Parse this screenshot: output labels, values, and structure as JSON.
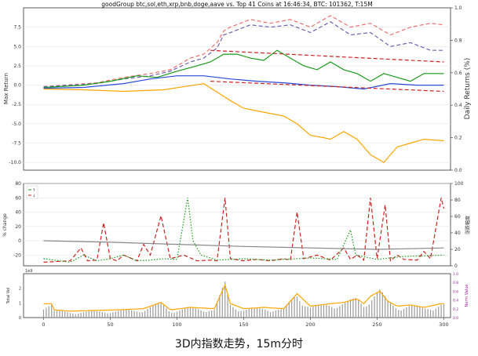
{
  "caption": "3D内指数走势，15m分时",
  "chart_data": [
    {
      "type": "line",
      "title": "goodGroup btc,sol,eth,xrp,bnb,doge,aave vs. Top 41 Coins at 16:46:34, BTC: 101362, T:15M",
      "ylabel_left": "Max Return",
      "ylabel_right": "Daily Returns (%)",
      "xlim": [
        -15,
        305
      ],
      "ylim": [
        -11,
        10
      ],
      "yticks": [
        -10.0,
        -7.5,
        -5.0,
        -2.5,
        0.0,
        2.5,
        5.0,
        7.5
      ],
      "ytick_labels": [
        "-10.0",
        "-7.5",
        "-5.0",
        "-2.5",
        "0.0",
        "2.5",
        "5.0",
        "7.5"
      ],
      "right_ticks": [
        "0.0",
        "0.2",
        "0.4",
        "0.6",
        "0.8",
        "1.0"
      ],
      "grid": true,
      "series": [
        {
          "color": "#f07070",
          "style": "dashed",
          "points": [
            [
              0,
              -0.2
            ],
            [
              40,
              0.3
            ],
            [
              60,
              1.0
            ],
            [
              80,
              1.5
            ],
            [
              95,
              2.0
            ],
            [
              110,
              3.5
            ],
            [
              120,
              4.0
            ],
            [
              130,
              5.5
            ],
            [
              135,
              7.0
            ],
            [
              140,
              7.5
            ],
            [
              155,
              8.5
            ],
            [
              170,
              8.0
            ],
            [
              185,
              8.5
            ],
            [
              200,
              7.5
            ],
            [
              215,
              9.0
            ],
            [
              230,
              7.5
            ],
            [
              245,
              8.0
            ],
            [
              260,
              6.5
            ],
            [
              275,
              7.5
            ],
            [
              290,
              8.0
            ],
            [
              300,
              7.8
            ]
          ]
        },
        {
          "color": "#7060b0",
          "style": "dashed",
          "points": [
            [
              0,
              -0.2
            ],
            [
              40,
              0.2
            ],
            [
              60,
              0.8
            ],
            [
              80,
              1.2
            ],
            [
              95,
              1.8
            ],
            [
              110,
              3.0
            ],
            [
              120,
              3.5
            ],
            [
              130,
              4.8
            ],
            [
              135,
              6.5
            ],
            [
              140,
              6.8
            ],
            [
              155,
              7.8
            ],
            [
              170,
              7.5
            ],
            [
              185,
              7.8
            ],
            [
              200,
              6.8
            ],
            [
              215,
              8.2
            ],
            [
              230,
              6.5
            ],
            [
              245,
              6.8
            ],
            [
              260,
              5.0
            ],
            [
              275,
              5.5
            ],
            [
              290,
              4.5
            ],
            [
              300,
              4.5
            ]
          ]
        },
        {
          "color": "#1a9a1a",
          "style": "solid",
          "points": [
            [
              0,
              -0.3
            ],
            [
              30,
              0.0
            ],
            [
              50,
              0.5
            ],
            [
              70,
              1.2
            ],
            [
              85,
              1.0
            ],
            [
              100,
              1.8
            ],
            [
              115,
              2.5
            ],
            [
              125,
              3.0
            ],
            [
              135,
              4.0
            ],
            [
              145,
              4.0
            ],
            [
              155,
              3.5
            ],
            [
              165,
              3.2
            ],
            [
              175,
              4.5
            ],
            [
              185,
              3.5
            ],
            [
              195,
              2.5
            ],
            [
              205,
              2.0
            ],
            [
              215,
              3.0
            ],
            [
              225,
              2.0
            ],
            [
              235,
              1.5
            ],
            [
              245,
              0.5
            ],
            [
              255,
              1.5
            ],
            [
              265,
              1.0
            ],
            [
              275,
              0.5
            ],
            [
              285,
              1.5
            ],
            [
              300,
              1.5
            ]
          ]
        },
        {
          "color": "#2a4ad8",
          "style": "solid",
          "points": [
            [
              0,
              -0.4
            ],
            [
              30,
              -0.3
            ],
            [
              60,
              0.2
            ],
            [
              80,
              0.8
            ],
            [
              100,
              1.2
            ],
            [
              120,
              1.2
            ],
            [
              140,
              0.8
            ],
            [
              160,
              0.5
            ],
            [
              180,
              0.3
            ],
            [
              200,
              0.0
            ],
            [
              220,
              -0.2
            ],
            [
              240,
              -0.5
            ],
            [
              260,
              0.2
            ],
            [
              280,
              0.0
            ],
            [
              300,
              0.0
            ]
          ]
        },
        {
          "color": "#ffa500",
          "style": "solid",
          "points": [
            [
              0,
              -0.5
            ],
            [
              30,
              -0.6
            ],
            [
              60,
              -0.8
            ],
            [
              90,
              -0.6
            ],
            [
              120,
              0.2
            ],
            [
              140,
              -2.0
            ],
            [
              150,
              -3.0
            ],
            [
              165,
              -3.5
            ],
            [
              180,
              -4.0
            ],
            [
              190,
              -5.0
            ],
            [
              200,
              -6.5
            ],
            [
              210,
              -6.8
            ],
            [
              215,
              -7.0
            ],
            [
              225,
              -6.0
            ],
            [
              235,
              -7.0
            ],
            [
              245,
              -9.0
            ],
            [
              255,
              -10.0
            ],
            [
              265,
              -8.0
            ],
            [
              275,
              -7.5
            ],
            [
              285,
              -7.0
            ],
            [
              300,
              -7.2
            ]
          ]
        },
        {
          "color": "#d02020",
          "style": "dashed",
          "points": [
            [
              125,
              4.5
            ],
            [
              300,
              3.0
            ]
          ]
        },
        {
          "color": "#d02020",
          "style": "dashed",
          "points": [
            [
              125,
              0.5
            ],
            [
              300,
              -0.8
            ]
          ]
        }
      ]
    },
    {
      "type": "line",
      "ylabel_left": "% change",
      "ylabel_right": "涨跌幅度",
      "xlim": [
        -15,
        305
      ],
      "ylim": [
        -35,
        80
      ],
      "yticks": [
        -20,
        0,
        20,
        40,
        60,
        80
      ],
      "ytick_labels": [
        "-20",
        "0",
        "20",
        "40",
        "60",
        "80"
      ],
      "right_ticks": [
        "0",
        "20",
        "40",
        "60",
        "80",
        "100"
      ],
      "legend": [
        "↑",
        "↓"
      ],
      "legend_position": "top-left",
      "series": [
        {
          "color": "#d02020",
          "style": "dashed",
          "points": [
            [
              0,
              -30
            ],
            [
              20,
              -28
            ],
            [
              28,
              -10
            ],
            [
              33,
              -28
            ],
            [
              40,
              -27
            ],
            [
              45,
              25
            ],
            [
              50,
              -25
            ],
            [
              55,
              -28
            ],
            [
              60,
              -20
            ],
            [
              70,
              -28
            ],
            [
              75,
              -5
            ],
            [
              80,
              -20
            ],
            [
              88,
              35
            ],
            [
              95,
              -25
            ],
            [
              105,
              -20
            ],
            [
              115,
              -28
            ],
            [
              125,
              -27
            ],
            [
              130,
              -28
            ],
            [
              136,
              60
            ],
            [
              140,
              -25
            ],
            [
              150,
              -28
            ],
            [
              160,
              -26
            ],
            [
              170,
              -28
            ],
            [
              180,
              -25
            ],
            [
              185,
              -27
            ],
            [
              190,
              40
            ],
            [
              195,
              -25
            ],
            [
              205,
              -20
            ],
            [
              215,
              -27
            ],
            [
              225,
              -10
            ],
            [
              230,
              -26
            ],
            [
              235,
              -20
            ],
            [
              240,
              -27
            ],
            [
              245,
              60
            ],
            [
              250,
              -25
            ],
            [
              256,
              50
            ],
            [
              260,
              -28
            ],
            [
              265,
              -20
            ],
            [
              270,
              -26
            ],
            [
              280,
              -27
            ],
            [
              285,
              -15
            ],
            [
              290,
              -25
            ],
            [
              298,
              60
            ],
            [
              300,
              45
            ]
          ]
        },
        {
          "color": "#1a9a1a",
          "style": "dotted",
          "points": [
            [
              0,
              -25
            ],
            [
              20,
              -30
            ],
            [
              30,
              -20
            ],
            [
              40,
              -28
            ],
            [
              50,
              -25
            ],
            [
              60,
              -20
            ],
            [
              70,
              -28
            ],
            [
              80,
              -27
            ],
            [
              90,
              -25
            ],
            [
              100,
              -26
            ],
            [
              108,
              60
            ],
            [
              112,
              0
            ],
            [
              118,
              -20
            ],
            [
              130,
              -27
            ],
            [
              150,
              -25
            ],
            [
              170,
              -27
            ],
            [
              200,
              -24
            ],
            [
              220,
              -26
            ],
            [
              230,
              15
            ],
            [
              234,
              -20
            ],
            [
              250,
              -26
            ],
            [
              270,
              -22
            ],
            [
              300,
              -20
            ]
          ]
        },
        {
          "color": "#888888",
          "style": "solid",
          "points": [
            [
              0,
              0
            ],
            [
              50,
              -2
            ],
            [
              100,
              -5
            ],
            [
              150,
              -8
            ],
            [
              200,
              -10
            ],
            [
              250,
              -12
            ],
            [
              300,
              -10
            ]
          ]
        }
      ]
    },
    {
      "type": "bar",
      "ylabel_left": "Total Vol",
      "ylabel_right": "Norm Value",
      "scale_label": "1e9",
      "xlim": [
        -15,
        305
      ],
      "ylim": [
        0,
        3.0
      ],
      "yticks": [
        0,
        1,
        2
      ],
      "ytick_labels": [
        "0",
        "1",
        "2"
      ],
      "right_ticks": [
        "0.0",
        "0.2",
        "0.4",
        "0.6",
        "0.8",
        "1.0"
      ],
      "xticks": [
        0,
        50,
        100,
        150,
        200,
        250,
        300
      ],
      "xtick_labels": [
        "0",
        "50",
        "100",
        "150",
        "200",
        "250",
        "300"
      ],
      "bar_color": "#9a9a9a",
      "line_color": "#ffa500",
      "peaks": [
        [
          8,
          0.5
        ],
        [
          20,
          0.4
        ],
        [
          35,
          0.45
        ],
        [
          55,
          0.5
        ],
        [
          75,
          0.6
        ],
        [
          88,
          1.1
        ],
        [
          95,
          0.5
        ],
        [
          110,
          0.7
        ],
        [
          128,
          0.6
        ],
        [
          136,
          2.5
        ],
        [
          140,
          1.0
        ],
        [
          150,
          0.6
        ],
        [
          165,
          0.7
        ],
        [
          180,
          0.6
        ],
        [
          190,
          1.8
        ],
        [
          200,
          0.8
        ],
        [
          215,
          1.0
        ],
        [
          225,
          1.1
        ],
        [
          235,
          1.4
        ],
        [
          240,
          1.0
        ],
        [
          245,
          1.6
        ],
        [
          252,
          2.0
        ],
        [
          258,
          1.2
        ],
        [
          265,
          0.8
        ],
        [
          275,
          0.9
        ],
        [
          285,
          0.7
        ],
        [
          298,
          1.0
        ]
      ]
    }
  ]
}
